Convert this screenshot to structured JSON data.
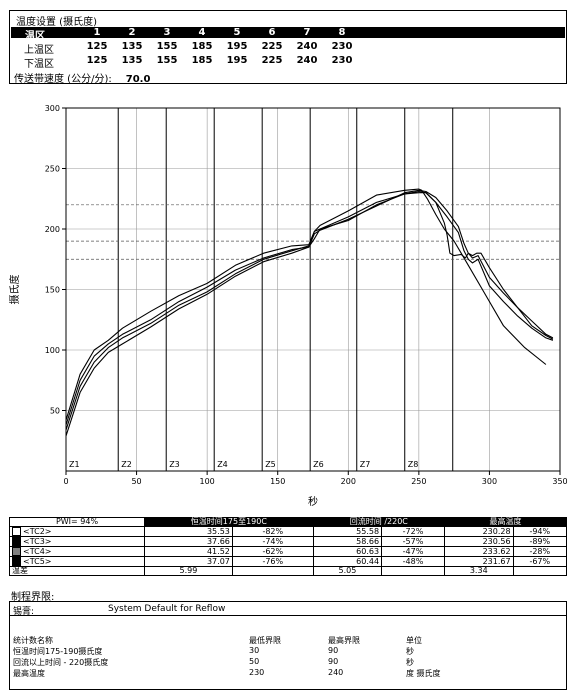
{
  "zone_settings": {
    "title": "温度设置 (摄氏度)",
    "header_label": "温区",
    "zones": [
      "1",
      "2",
      "3",
      "4",
      "5",
      "6",
      "7",
      "8"
    ],
    "rows": [
      {
        "label": "上温区",
        "values": [
          "125",
          "135",
          "155",
          "185",
          "195",
          "225",
          "240",
          "230"
        ]
      },
      {
        "label": "下温区",
        "values": [
          "125",
          "135",
          "155",
          "185",
          "195",
          "225",
          "240",
          "230"
        ]
      }
    ],
    "speed_label": "传送带速度 (公分/分):",
    "speed_value": "70.0"
  },
  "chart_data": {
    "type": "line",
    "xlabel": "秒",
    "ylabel": "摄氏度",
    "xlim": [
      0,
      350
    ],
    "ylim": [
      0,
      300
    ],
    "xticks": [
      0,
      50,
      100,
      150,
      200,
      250,
      300,
      350
    ],
    "yticks": [
      50,
      100,
      150,
      200,
      250,
      300
    ],
    "grid": true,
    "zone_boundaries": [
      {
        "label": "Z1",
        "x": 0
      },
      {
        "label": "Z2",
        "x": 37
      },
      {
        "label": "Z3",
        "x": 71
      },
      {
        "label": "Z4",
        "x": 105
      },
      {
        "label": "Z5",
        "x": 139
      },
      {
        "label": "Z6",
        "x": 173
      },
      {
        "label": "Z7",
        "x": 206
      },
      {
        "label": "Z8",
        "x": 240
      },
      {
        "label": "",
        "x": 274
      }
    ],
    "reference_lines": [
      175,
      190,
      220
    ],
    "series": [
      {
        "name": "TC2",
        "x": [
          0,
          10,
          20,
          30,
          40,
          60,
          80,
          100,
          120,
          140,
          160,
          172,
          176,
          180,
          200,
          220,
          240,
          250,
          255,
          262,
          270,
          278,
          282,
          285,
          288,
          292,
          300,
          310,
          320,
          330,
          340,
          345
        ],
        "y": [
          34,
          70,
          90,
          102,
          110,
          122,
          137,
          148,
          163,
          175,
          182,
          186,
          198,
          200,
          207,
          220,
          229,
          231,
          230,
          222,
          210,
          197,
          182,
          175,
          172,
          175,
          153,
          140,
          128,
          118,
          110,
          108
        ]
      },
      {
        "name": "TC3",
        "x": [
          0,
          10,
          20,
          30,
          40,
          60,
          80,
          100,
          120,
          140,
          160,
          172,
          176,
          180,
          200,
          220,
          240,
          250,
          255,
          262,
          270,
          278,
          282,
          285,
          288,
          292,
          300,
          310,
          320,
          330,
          340,
          345
        ],
        "y": [
          38,
          75,
          95,
          105,
          113,
          125,
          140,
          152,
          166,
          176,
          183,
          185,
          196,
          199,
          208,
          219,
          230,
          232,
          231,
          226,
          215,
          202,
          188,
          180,
          176,
          178,
          160,
          147,
          135,
          124,
          113,
          110
        ]
      },
      {
        "name": "TC4",
        "x": [
          0,
          10,
          20,
          30,
          40,
          60,
          80,
          100,
          120,
          140,
          160,
          172,
          176,
          180,
          200,
          220,
          240,
          250,
          252,
          256,
          262,
          268,
          275,
          280,
          285,
          295,
          310,
          325,
          340
        ],
        "y": [
          42,
          80,
          100,
          108,
          118,
          132,
          145,
          155,
          170,
          180,
          186,
          187,
          198,
          203,
          215,
          228,
          232,
          233,
          232,
          225,
          212,
          200,
          190,
          180,
          170,
          150,
          120,
          102,
          88
        ]
      },
      {
        "name": "TC5",
        "x": [
          0,
          10,
          20,
          30,
          40,
          60,
          80,
          100,
          120,
          140,
          160,
          172,
          176,
          180,
          200,
          220,
          240,
          250,
          255,
          262,
          268,
          270,
          272,
          275,
          280,
          283,
          285,
          288,
          291,
          294,
          300,
          310,
          320,
          330,
          340,
          345
        ],
        "y": [
          29,
          65,
          85,
          98,
          105,
          119,
          134,
          146,
          161,
          173,
          180,
          185,
          192,
          200,
          210,
          222,
          229,
          230,
          230,
          222,
          205,
          195,
          180,
          178,
          179,
          176,
          180,
          178,
          180,
          180,
          168,
          150,
          135,
          120,
          112,
          109
        ]
      }
    ]
  },
  "stats": {
    "pwi_label": "PWI= 94%",
    "col1_title": "恒温时间175至190C",
    "col2_title": "回流时间 /220C",
    "col3_title": "最高温度",
    "rows": [
      {
        "name": "<TC2>",
        "color": "#ffffff",
        "c1": "35.53",
        "p1": "-82%",
        "c2": "55.58",
        "p2": "-72%",
        "c3": "230.28",
        "p3": "-94%"
      },
      {
        "name": "<TC3>",
        "color": "#000000",
        "c1": "37.66",
        "p1": "-74%",
        "c2": "58.66",
        "p2": "-57%",
        "c3": "230.56",
        "p3": "-89%"
      },
      {
        "name": "<TC4>",
        "color": "#808080",
        "c1": "41.52",
        "p1": "-62%",
        "c2": "60.63",
        "p2": "-47%",
        "c3": "233.62",
        "p3": "-28%"
      },
      {
        "name": "<TC5>",
        "color": "#000000",
        "c1": "37.07",
        "p1": "-76%",
        "c2": "60.44",
        "p2": "-48%",
        "c3": "231.67",
        "p3": "-67%"
      }
    ],
    "delta_label": "温差",
    "delta": [
      "5.99",
      "5.05",
      "3.34"
    ]
  },
  "limits": {
    "title": "制程界限:",
    "solder_label": "锡膏:",
    "solder_value": "System Default for Reflow",
    "headers": [
      "统计数名称",
      "最低界限",
      "最高界限",
      "单位"
    ],
    "rows": [
      [
        "恒温时间175-190摄氏度",
        "30",
        "90",
        "秒"
      ],
      [
        "回流以上时间 - 220摄氏度",
        "50",
        "90",
        "秒"
      ],
      [
        "最高温度",
        "230",
        "240",
        "度 摄氏度"
      ]
    ]
  }
}
